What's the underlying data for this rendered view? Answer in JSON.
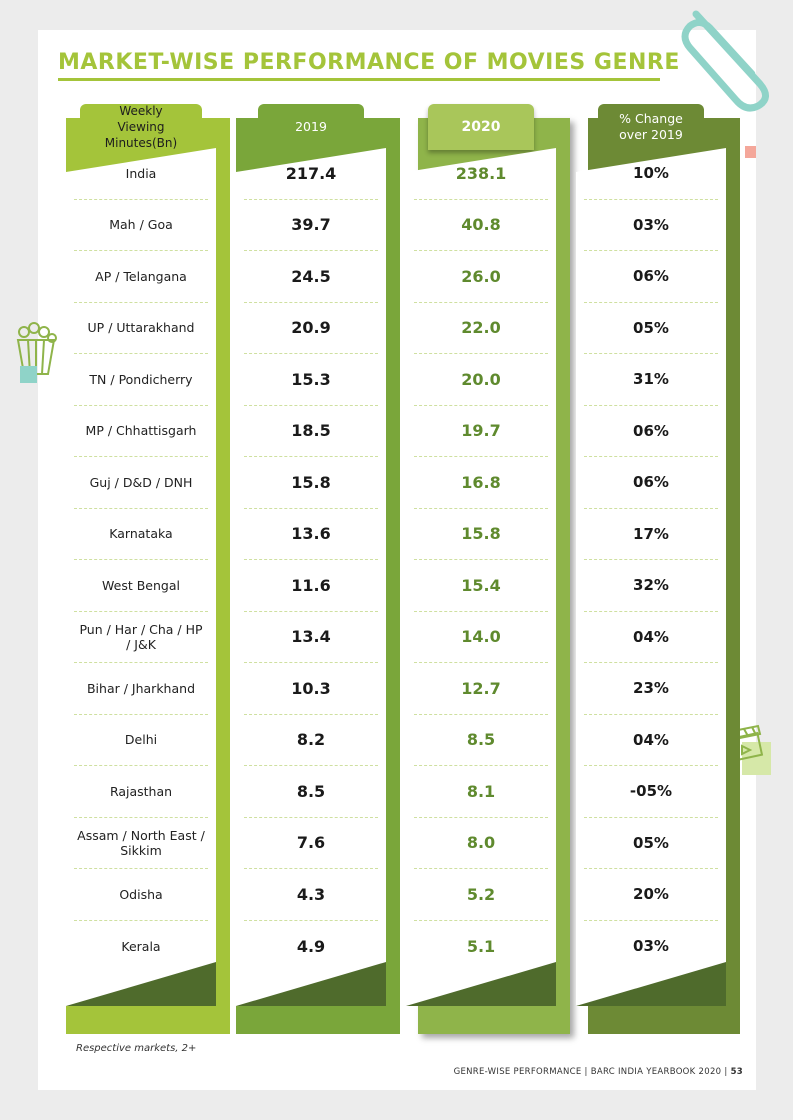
{
  "title": "MARKET-WISE PERFORMANCE OF MOVIES GENRE",
  "columns": {
    "market_header": "Weekly\nViewing Minutes(Bn)",
    "year1_header": "2019",
    "year2_header": "2020",
    "change_header": "% Change\nover 2019"
  },
  "rows": [
    {
      "market": "India",
      "y2019": "217.4",
      "y2020": "238.1",
      "change": "10%"
    },
    {
      "market": "Mah / Goa",
      "y2019": "39.7",
      "y2020": "40.8",
      "change": "03%"
    },
    {
      "market": "AP / Telangana",
      "y2019": "24.5",
      "y2020": "26.0",
      "change": "06%"
    },
    {
      "market": "UP / Uttarakhand",
      "y2019": "20.9",
      "y2020": "22.0",
      "change": "05%"
    },
    {
      "market": "TN / Pondicherry",
      "y2019": "15.3",
      "y2020": "20.0",
      "change": "31%"
    },
    {
      "market": "MP / Chhattisgarh",
      "y2019": "18.5",
      "y2020": "19.7",
      "change": "06%"
    },
    {
      "market": "Guj / D&D / DNH",
      "y2019": "15.8",
      "y2020": "16.8",
      "change": "06%"
    },
    {
      "market": "Karnataka",
      "y2019": "13.6",
      "y2020": "15.8",
      "change": "17%"
    },
    {
      "market": "West Bengal",
      "y2019": "11.6",
      "y2020": "15.4",
      "change": "32%"
    },
    {
      "market": "Pun / Har / Cha / HP / J&K",
      "y2019": "13.4",
      "y2020": "14.0",
      "change": "04%"
    },
    {
      "market": "Bihar / Jharkhand",
      "y2019": "10.3",
      "y2020": "12.7",
      "change": "23%"
    },
    {
      "market": "Delhi",
      "y2019": "8.2",
      "y2020": "8.5",
      "change": "04%"
    },
    {
      "market": "Rajasthan",
      "y2019": "8.5",
      "y2020": "8.1",
      "change": "-05%"
    },
    {
      "market": "Assam / North East / Sikkim",
      "y2019": "7.6",
      "y2020": "8.0",
      "change": "05%"
    },
    {
      "market": "Odisha",
      "y2019": "4.3",
      "y2020": "5.2",
      "change": "20%"
    },
    {
      "market": "Kerala",
      "y2019": "4.9",
      "y2020": "5.1",
      "change": "03%"
    }
  ],
  "footnote": "Respective markets, 2+",
  "footer": {
    "text": "GENRE-WISE PERFORMANCE | BARC INDIA YEARBOOK 2020 |",
    "page": "53"
  },
  "colors": {
    "title": "#a4c43a",
    "col_market": "#a4c43a",
    "col_2019": "#7aa63a",
    "col_2020": "#8fb44a",
    "col_change": "#6d8a35",
    "value_2020": "#5f8a2e"
  },
  "icons": [
    "paperclip-icon",
    "popcorn-icon",
    "clapperboard-icon"
  ]
}
